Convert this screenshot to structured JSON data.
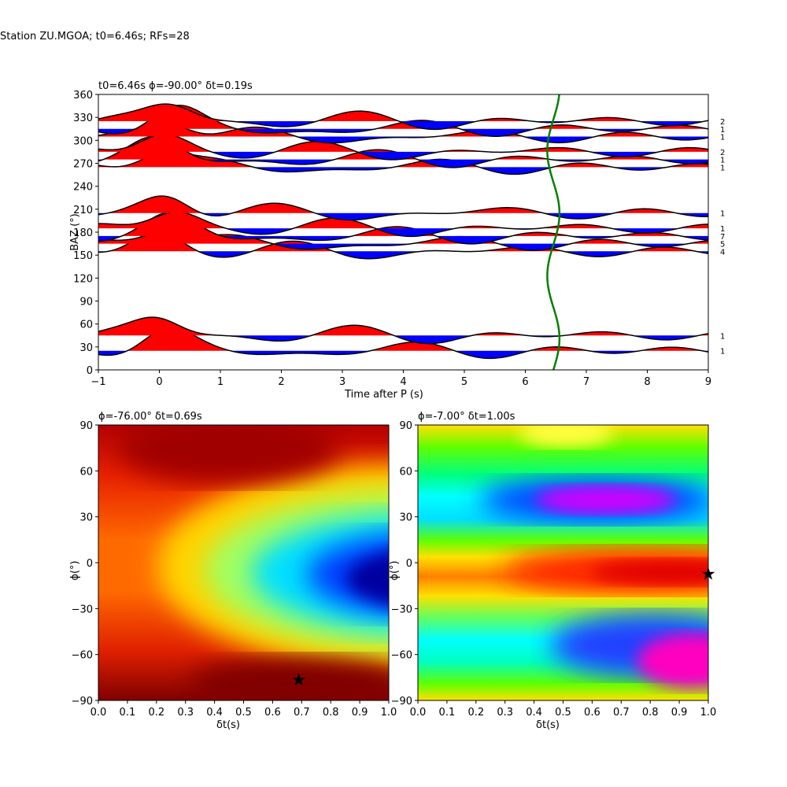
{
  "suptitle": "Station ZU.MGOA; t0=6.46s; RFs=28",
  "chart_data": [
    {
      "type": "line",
      "panel": "receiver-functions",
      "title": "t0=6.46s ϕ=-90.00° δt=0.19s",
      "xlabel": "Time after P (s)",
      "ylabel": "BAZ (°)",
      "xlim": [
        -1,
        9
      ],
      "ylim": [
        0,
        360
      ],
      "xticks": [
        -1,
        0,
        1,
        2,
        3,
        4,
        5,
        6,
        7,
        8,
        9
      ],
      "yticks": [
        0,
        30,
        60,
        90,
        120,
        150,
        180,
        210,
        240,
        270,
        300,
        330,
        360
      ],
      "traces": [
        {
          "baz": 25,
          "count": "1"
        },
        {
          "baz": 45,
          "count": "1"
        },
        {
          "baz": 155,
          "count": "4"
        },
        {
          "baz": 165,
          "count": "5"
        },
        {
          "baz": 175,
          "count": "7"
        },
        {
          "baz": 185,
          "count": "1"
        },
        {
          "baz": 205,
          "count": "1"
        },
        {
          "baz": 265,
          "count": "1"
        },
        {
          "baz": 275,
          "count": "1"
        },
        {
          "baz": 285,
          "count": "2"
        },
        {
          "baz": 305,
          "count": "1"
        },
        {
          "baz": 315,
          "count": "1"
        },
        {
          "baz": 325,
          "count": "2"
        }
      ],
      "t0_curve": {
        "color": "#008000",
        "center": 6.46,
        "amplitude": 0.1
      }
    },
    {
      "type": "heatmap",
      "panel": "grid-search-left",
      "title": "ϕ=-76.00° δt=0.69s",
      "xlabel": "δt(s)",
      "ylabel": "ϕ(°)",
      "xlim": [
        0,
        1
      ],
      "ylim": [
        -90,
        90
      ],
      "xticks": [
        "0.0",
        "0.1",
        "0.2",
        "0.3",
        "0.4",
        "0.5",
        "0.6",
        "0.7",
        "0.8",
        "0.9",
        "1.0"
      ],
      "yticks": [
        -90,
        -60,
        -30,
        0,
        30,
        60,
        90
      ],
      "colormap": "jet",
      "best": {
        "dt": 0.69,
        "phi": -76
      }
    },
    {
      "type": "heatmap",
      "panel": "grid-search-right",
      "title": "ϕ=-7.00° δt=1.00s",
      "xlabel": "δt(s)",
      "ylabel": "ϕ(°)",
      "xlim": [
        0,
        1
      ],
      "ylim": [
        -90,
        90
      ],
      "xticks": [
        "0.0",
        "0.1",
        "0.2",
        "0.3",
        "0.4",
        "0.5",
        "0.6",
        "0.7",
        "0.8",
        "0.9",
        "1.0"
      ],
      "yticks": [
        -90,
        -60,
        -30,
        0,
        30,
        60,
        90
      ],
      "colormap": "hsv",
      "best": {
        "dt": 1.0,
        "phi": -7
      }
    }
  ]
}
